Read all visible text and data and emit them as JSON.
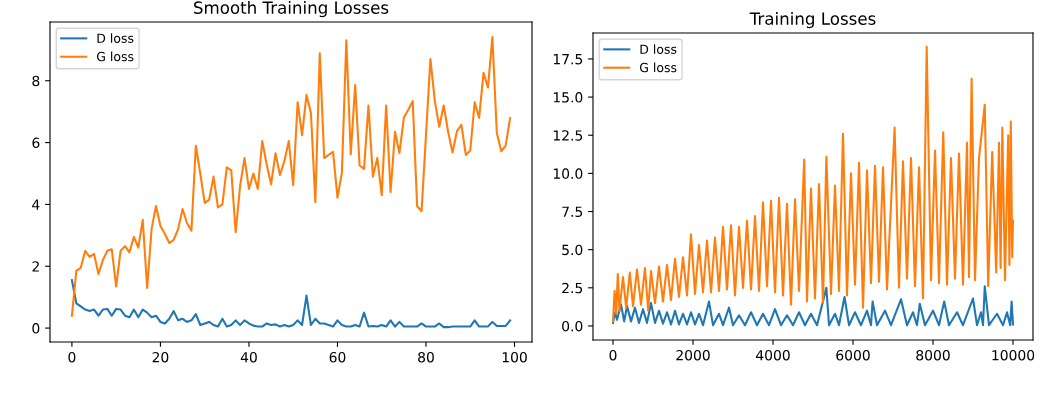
{
  "chart_data": [
    {
      "type": "line",
      "title": "Smooth Training Losses",
      "legend": "top left",
      "grid": false,
      "x": [
        0,
        1,
        2,
        3,
        4,
        5,
        6,
        7,
        8,
        9,
        10,
        11,
        12,
        13,
        14,
        15,
        16,
        17,
        18,
        19,
        20,
        21,
        22,
        23,
        24,
        25,
        26,
        27,
        28,
        29,
        30,
        31,
        32,
        33,
        34,
        35,
        36,
        37,
        38,
        39,
        40,
        41,
        42,
        43,
        44,
        45,
        46,
        47,
        48,
        49,
        50,
        51,
        52,
        53,
        54,
        55,
        56,
        57,
        58,
        59,
        60,
        61,
        62,
        63,
        64,
        65,
        66,
        67,
        68,
        69,
        70,
        71,
        72,
        73,
        74,
        75,
        76,
        77,
        78,
        79,
        80,
        81,
        82,
        83,
        84,
        85,
        86,
        87,
        88,
        89,
        90,
        91,
        92,
        93,
        94,
        95,
        96,
        97,
        98,
        99
      ],
      "xlim": [
        -4.95,
        103.95
      ],
      "xticks": [
        0,
        20,
        40,
        60,
        80,
        100
      ],
      "ylim": [
        -0.45,
        9.9
      ],
      "yticks": [
        0,
        2,
        4,
        6,
        8
      ],
      "series": [
        {
          "name": "D loss",
          "color": "#1f77b4",
          "values": [
            1.55,
            0.8,
            0.7,
            0.6,
            0.55,
            0.6,
            0.4,
            0.6,
            0.62,
            0.4,
            0.62,
            0.6,
            0.4,
            0.35,
            0.6,
            0.35,
            0.6,
            0.5,
            0.35,
            0.4,
            0.2,
            0.15,
            0.3,
            0.55,
            0.25,
            0.3,
            0.2,
            0.25,
            0.45,
            0.1,
            0.15,
            0.2,
            0.1,
            0.05,
            0.3,
            0.05,
            0.1,
            0.25,
            0.1,
            0.25,
            0.15,
            0.08,
            0.05,
            0.05,
            0.15,
            0.1,
            0.12,
            0.05,
            0.1,
            0.05,
            0.1,
            0.25,
            0.1,
            1.05,
            0.1,
            0.3,
            0.15,
            0.15,
            0.1,
            0.05,
            0.25,
            0.1,
            0.05,
            0.05,
            0.1,
            0.05,
            0.5,
            0.05,
            0.07,
            0.05,
            0.1,
            0.05,
            0.25,
            0.05,
            0.2,
            0.05,
            0.05,
            0.05,
            0.05,
            0.15,
            0.05,
            0.05,
            0.05,
            0.15,
            0.03,
            0.03,
            0.05,
            0.05,
            0.05,
            0.05,
            0.05,
            0.25,
            0.05,
            0.05,
            0.05,
            0.2,
            0.07,
            0.07,
            0.07,
            0.25
          ]
        },
        {
          "name": "G loss",
          "color": "#ff7f0e",
          "values": [
            0.4,
            1.85,
            1.95,
            2.5,
            2.3,
            2.4,
            1.75,
            2.2,
            2.5,
            2.55,
            1.35,
            2.5,
            2.65,
            2.45,
            2.95,
            2.6,
            3.5,
            1.3,
            3.2,
            3.95,
            3.3,
            3.05,
            2.75,
            2.85,
            3.2,
            3.85,
            3.4,
            3.15,
            5.9,
            5.0,
            4.05,
            4.15,
            4.9,
            3.9,
            4.0,
            5.2,
            5.1,
            3.1,
            4.6,
            5.5,
            4.5,
            5.0,
            4.5,
            6.05,
            5.3,
            4.65,
            5.65,
            4.95,
            5.4,
            6.05,
            4.62,
            7.3,
            6.24,
            7.54,
            6.96,
            4.07,
            8.89,
            5.5,
            5.6,
            5.7,
            4.22,
            5.02,
            9.31,
            5.62,
            7.86,
            5.26,
            5.15,
            7.2,
            4.9,
            5.5,
            4.3,
            7.2,
            4.4,
            6.35,
            5.66,
            6.81,
            7.06,
            7.34,
            3.94,
            3.78,
            6.24,
            8.7,
            7.34,
            6.51,
            7.2,
            6.35,
            5.68,
            6.37,
            6.57,
            5.6,
            5.74,
            7.3,
            6.8,
            8.26,
            7.78,
            9.41,
            6.32,
            5.72,
            5.9,
            6.79
          ]
        }
      ]
    },
    {
      "type": "line",
      "title": "Training Losses",
      "legend": "top left",
      "grid": false,
      "xlim": [
        -500,
        10500
      ],
      "xticks": [
        0,
        2000,
        4000,
        6000,
        8000,
        10000
      ],
      "ylim": [
        -0.92,
        19.2
      ],
      "yticks": [
        {
          "value": 0,
          "label": "0.0"
        },
        {
          "value": 2.5,
          "label": "2.5"
        },
        {
          "value": 5,
          "label": "5.0"
        },
        {
          "value": 7.5,
          "label": "7.5"
        },
        {
          "value": 10,
          "label": "10.0"
        },
        {
          "value": 12.5,
          "label": "12.5"
        },
        {
          "value": 15,
          "label": "15.0"
        },
        {
          "value": 17.5,
          "label": "17.5"
        }
      ],
      "series": [
        {
          "name": "D loss",
          "color": "#1f77b4",
          "x": [
            0,
            50,
            100,
            200,
            280,
            350,
            450,
            550,
            650,
            750,
            850,
            950,
            1050,
            1150,
            1250,
            1350,
            1450,
            1550,
            1650,
            1750,
            1850,
            1950,
            2050,
            2150,
            2250,
            2400,
            2500,
            2650,
            2750,
            2900,
            3000,
            3150,
            3300,
            3450,
            3600,
            3750,
            3900,
            4050,
            4200,
            4350,
            4500,
            4650,
            4800,
            4950,
            5100,
            5334,
            5400,
            5550,
            5650,
            5788,
            5900,
            6050,
            6200,
            6350,
            6450,
            6490,
            6600,
            6800,
            6950,
            7200,
            7350,
            7500,
            7600,
            7670,
            7800,
            8000,
            8150,
            8280,
            8400,
            8600,
            8750,
            9000,
            9100,
            9200,
            9250,
            9294,
            9400,
            9600,
            9750,
            9850,
            9930,
            9965,
            10000
          ],
          "values": [
            0.2,
            0.9,
            0.4,
            1.4,
            0.3,
            1.3,
            0.3,
            1.2,
            0.2,
            1.1,
            0.2,
            1.5,
            0.2,
            1.0,
            0.15,
            0.9,
            0.1,
            1.0,
            0.1,
            0.8,
            0.1,
            0.9,
            0.1,
            0.8,
            0.05,
            1.6,
            0.05,
            0.8,
            0.05,
            1.2,
            0.05,
            0.7,
            0.05,
            0.9,
            0.05,
            0.8,
            0.05,
            1.1,
            0.05,
            0.7,
            0.05,
            0.9,
            0.05,
            0.8,
            0.05,
            2.5,
            0.05,
            0.8,
            0.05,
            1.9,
            0.05,
            0.9,
            0.05,
            1.0,
            0.05,
            1.6,
            0.05,
            1.0,
            0.05,
            1.75,
            0.05,
            0.9,
            0.05,
            1.45,
            0.05,
            1.0,
            0.05,
            1.6,
            0.05,
            0.9,
            0.05,
            1.8,
            0.05,
            0.9,
            0.05,
            2.6,
            0.05,
            0.8,
            0.05,
            0.9,
            0.05,
            1.6,
            0.1
          ]
        },
        {
          "name": "G loss",
          "color": "#ff7f0e",
          "x": [
            0,
            40,
            80,
            120,
            160,
            250,
            330,
            420,
            500,
            600,
            700,
            800,
            880,
            950,
            1050,
            1150,
            1250,
            1350,
            1450,
            1550,
            1650,
            1750,
            1850,
            1950,
            2050,
            2150,
            2250,
            2350,
            2450,
            2550,
            2650,
            2750,
            2850,
            2950,
            3050,
            3150,
            3250,
            3350,
            3450,
            3550,
            3650,
            3750,
            3850,
            3950,
            4050,
            4150,
            4250,
            4350,
            4450,
            4550,
            4650,
            4780,
            4850,
            4950,
            5050,
            5150,
            5250,
            5334,
            5450,
            5550,
            5650,
            5750,
            5850,
            5950,
            6050,
            6150,
            6250,
            6350,
            6450,
            6550,
            6650,
            6750,
            6850,
            7040,
            7150,
            7250,
            7350,
            7450,
            7550,
            7650,
            7750,
            7842,
            7950,
            8050,
            8150,
            8256,
            8350,
            8450,
            8550,
            8650,
            8750,
            8850,
            8900,
            8965,
            9050,
            9150,
            9294,
            9380,
            9480,
            9580,
            9650,
            9690,
            9733,
            9800,
            9880,
            9910,
            9945,
            9980,
            10000
          ],
          "values": [
            0.3,
            2.3,
            0.8,
            3.4,
            1.0,
            3.2,
            1.2,
            3.5,
            1.3,
            3.7,
            1.4,
            3.8,
            1.0,
            3.6,
            1.5,
            3.9,
            1.6,
            4.0,
            1.7,
            4.4,
            1.9,
            4.5,
            2.0,
            6.0,
            2.1,
            5.3,
            2.2,
            5.6,
            2.2,
            5.8,
            2.3,
            6.5,
            2.4,
            6.6,
            2.0,
            6.5,
            2.5,
            6.9,
            2.4,
            7.2,
            2.3,
            8.1,
            2.6,
            8.2,
            2.2,
            8.4,
            2.0,
            8.0,
            1.4,
            8.3,
            2.3,
            10.9,
            1.6,
            9.0,
            1.8,
            9.3,
            1.5,
            11.1,
            2.1,
            9.2,
            2.3,
            12.6,
            2.0,
            10.0,
            2.7,
            10.7,
            1.2,
            10.2,
            2.8,
            10.5,
            2.9,
            10.4,
            2.4,
            13.0,
            2.5,
            10.8,
            3.1,
            11.0,
            2.6,
            10.4,
            1.8,
            18.3,
            3.0,
            11.5,
            2.8,
            12.7,
            2.7,
            11.0,
            3.1,
            11.3,
            2.7,
            12.0,
            3.2,
            16.2,
            3.0,
            11.0,
            14.5,
            2.6,
            11.4,
            3.5,
            12.0,
            3.8,
            13.0,
            3.0,
            12.5,
            4.0,
            13.4,
            4.5,
            6.9
          ]
        }
      ]
    }
  ]
}
